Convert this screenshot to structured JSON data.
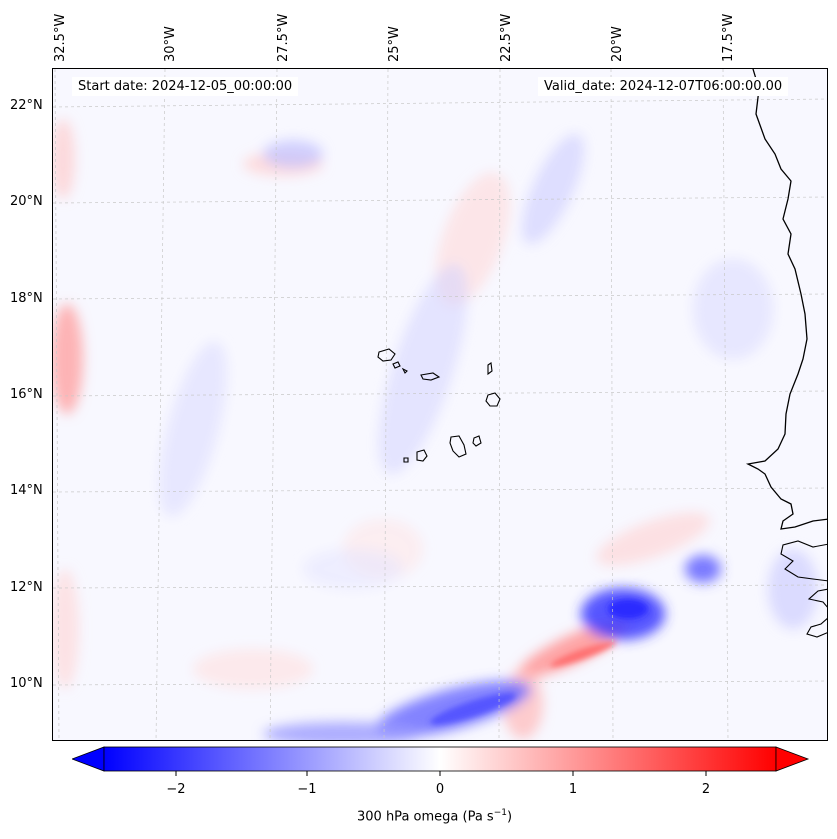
{
  "map": {
    "start_date": "Start date: 2024-12-05_00:00:00",
    "valid_date": "Valid_date: 2024-12-07T06:00:00.00",
    "lon_labels": [
      "32.5°W",
      "30°W",
      "27.5°W",
      "25°W",
      "22.5°W",
      "20°W",
      "17.5°W"
    ],
    "lat_labels": [
      "22°N",
      "20°N",
      "18°N",
      "16°N",
      "14°N",
      "12°N",
      "10°N"
    ],
    "region": "Cape Verde Islands and West African coast",
    "gridlines": true
  },
  "colorbar": {
    "label_main": "300 hPa omega (Pa s",
    "label_sup": "−1",
    "label_end": ")",
    "ticks": [
      "−2",
      "−1",
      "0",
      "1",
      "2"
    ],
    "range": [
      -2.7,
      2.7
    ],
    "colormap": "bwr",
    "extend": "both",
    "colors": {
      "negative": "#0000ff",
      "zero": "#ffffff",
      "positive": "#ff0000"
    }
  }
}
